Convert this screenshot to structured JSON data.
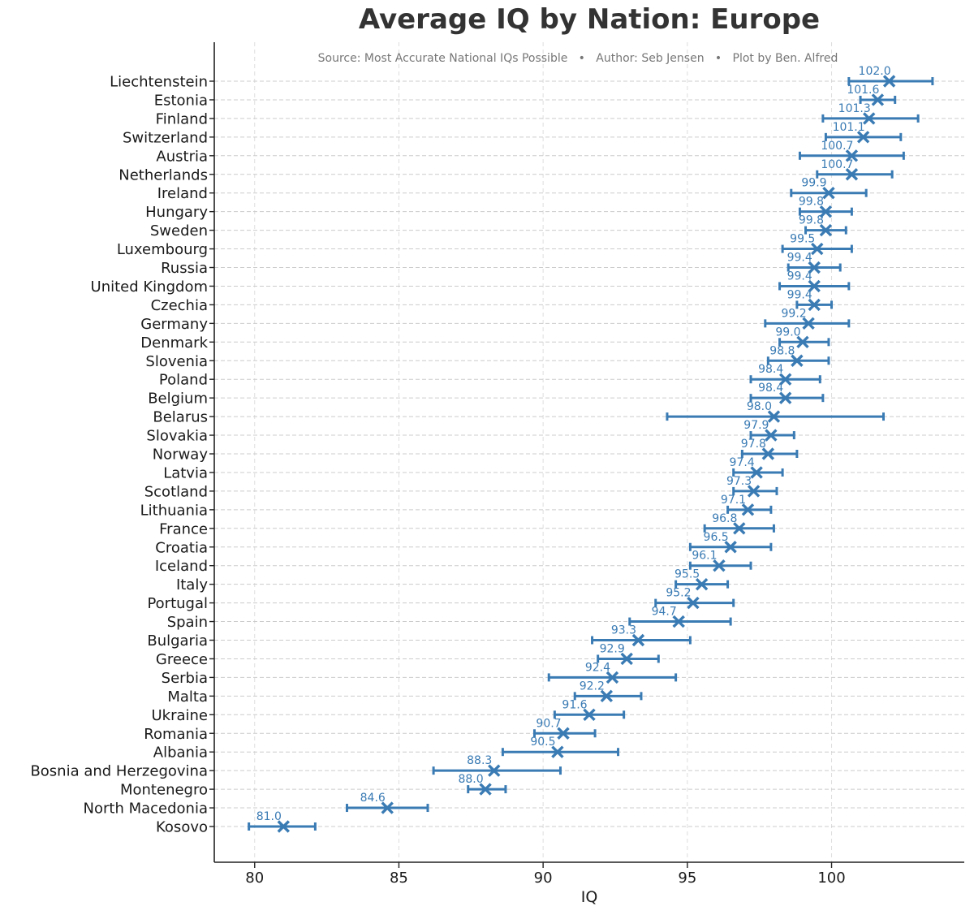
{
  "chart_data": {
    "type": "scatter",
    "title": "Average IQ by Nation: Europe",
    "subtitle": "Source: Most Accurate National IQs Possible   •   Author: Seb Jensen   •   Plot by Ben. Alfred",
    "xlabel": "IQ",
    "ylabel": "",
    "xlim": [
      78.6,
      104.6
    ],
    "xticks": [
      80,
      85,
      90,
      95,
      100
    ],
    "grid": true,
    "color": "#3a7bb4",
    "marker": "x",
    "error_bars": true,
    "series": [
      {
        "name": "Liechtenstein",
        "value": 102.0,
        "label": "102.0",
        "err_low": 100.6,
        "err_high": 103.5
      },
      {
        "name": "Estonia",
        "value": 101.6,
        "label": "101.6",
        "err_low": 101.0,
        "err_high": 102.2
      },
      {
        "name": "Finland",
        "value": 101.3,
        "label": "101.3",
        "err_low": 99.7,
        "err_high": 103.0
      },
      {
        "name": "Switzerland",
        "value": 101.1,
        "label": "101.1",
        "err_low": 99.8,
        "err_high": 102.4
      },
      {
        "name": "Austria",
        "value": 100.7,
        "label": "100.7",
        "err_low": 98.9,
        "err_high": 102.5
      },
      {
        "name": "Netherlands",
        "value": 100.7,
        "label": "100.7",
        "err_low": 99.5,
        "err_high": 102.1
      },
      {
        "name": "Ireland",
        "value": 99.9,
        "label": "99.9",
        "err_low": 98.6,
        "err_high": 101.2
      },
      {
        "name": "Hungary",
        "value": 99.8,
        "label": "99.8",
        "err_low": 98.9,
        "err_high": 100.7
      },
      {
        "name": "Sweden",
        "value": 99.8,
        "label": "99.8",
        "err_low": 99.1,
        "err_high": 100.5
      },
      {
        "name": "Luxembourg",
        "value": 99.5,
        "label": "99.5",
        "err_low": 98.3,
        "err_high": 100.7
      },
      {
        "name": "Russia",
        "value": 99.4,
        "label": "99.4",
        "err_low": 98.5,
        "err_high": 100.3
      },
      {
        "name": "United Kingdom",
        "value": 99.4,
        "label": "99.4",
        "err_low": 98.2,
        "err_high": 100.6
      },
      {
        "name": "Czechia",
        "value": 99.4,
        "label": "99.4",
        "err_low": 98.8,
        "err_high": 100.0
      },
      {
        "name": "Germany",
        "value": 99.2,
        "label": "99.2",
        "err_low": 97.7,
        "err_high": 100.6
      },
      {
        "name": "Denmark",
        "value": 99.0,
        "label": "99.0",
        "err_low": 98.2,
        "err_high": 99.9
      },
      {
        "name": "Slovenia",
        "value": 98.8,
        "label": "98.8",
        "err_low": 97.8,
        "err_high": 99.9
      },
      {
        "name": "Poland",
        "value": 98.4,
        "label": "98.4",
        "err_low": 97.2,
        "err_high": 99.6
      },
      {
        "name": "Belgium",
        "value": 98.4,
        "label": "98.4",
        "err_low": 97.2,
        "err_high": 99.7
      },
      {
        "name": "Belarus",
        "value": 98.0,
        "label": "98.0",
        "err_low": 94.3,
        "err_high": 101.8
      },
      {
        "name": "Slovakia",
        "value": 97.9,
        "label": "97.9",
        "err_low": 97.2,
        "err_high": 98.7
      },
      {
        "name": "Norway",
        "value": 97.8,
        "label": "97.8",
        "err_low": 96.9,
        "err_high": 98.8
      },
      {
        "name": "Latvia",
        "value": 97.4,
        "label": "97.4",
        "err_low": 96.6,
        "err_high": 98.3
      },
      {
        "name": "Scotland",
        "value": 97.3,
        "label": "97.3",
        "err_low": 96.6,
        "err_high": 98.1
      },
      {
        "name": "Lithuania",
        "value": 97.1,
        "label": "97.1",
        "err_low": 96.4,
        "err_high": 97.9
      },
      {
        "name": "France",
        "value": 96.8,
        "label": "96.8",
        "err_low": 95.6,
        "err_high": 98.0
      },
      {
        "name": "Croatia",
        "value": 96.5,
        "label": "96.5",
        "err_low": 95.1,
        "err_high": 97.9
      },
      {
        "name": "Iceland",
        "value": 96.1,
        "label": "96.1",
        "err_low": 95.1,
        "err_high": 97.2
      },
      {
        "name": "Italy",
        "value": 95.5,
        "label": "95.5",
        "err_low": 94.6,
        "err_high": 96.4
      },
      {
        "name": "Portugal",
        "value": 95.2,
        "label": "95.2",
        "err_low": 93.9,
        "err_high": 96.6
      },
      {
        "name": "Spain",
        "value": 94.7,
        "label": "94.7",
        "err_low": 93.0,
        "err_high": 96.5
      },
      {
        "name": "Bulgaria",
        "value": 93.3,
        "label": "93.3",
        "err_low": 91.7,
        "err_high": 95.1
      },
      {
        "name": "Greece",
        "value": 92.9,
        "label": "92.9",
        "err_low": 91.9,
        "err_high": 94.0
      },
      {
        "name": "Serbia",
        "value": 92.4,
        "label": "92.4",
        "err_low": 90.2,
        "err_high": 94.6
      },
      {
        "name": "Malta",
        "value": 92.2,
        "label": "92.2",
        "err_low": 91.1,
        "err_high": 93.4
      },
      {
        "name": "Ukraine",
        "value": 91.6,
        "label": "91.6",
        "err_low": 90.4,
        "err_high": 92.8
      },
      {
        "name": "Romania",
        "value": 90.7,
        "label": "90.7",
        "err_low": 89.7,
        "err_high": 91.8
      },
      {
        "name": "Albania",
        "value": 90.5,
        "label": "90.5",
        "err_low": 88.6,
        "err_high": 92.6
      },
      {
        "name": "Bosnia and Herzegovina",
        "value": 88.3,
        "label": "88.3",
        "err_low": 86.2,
        "err_high": 90.6
      },
      {
        "name": "Montenegro",
        "value": 88.0,
        "label": "88.0",
        "err_low": 87.4,
        "err_high": 88.7
      },
      {
        "name": "North Macedonia",
        "value": 84.6,
        "label": "84.6",
        "err_low": 83.2,
        "err_high": 86.0
      },
      {
        "name": "Kosovo",
        "value": 81.0,
        "label": "81.0",
        "err_low": 79.8,
        "err_high": 82.1
      }
    ]
  }
}
